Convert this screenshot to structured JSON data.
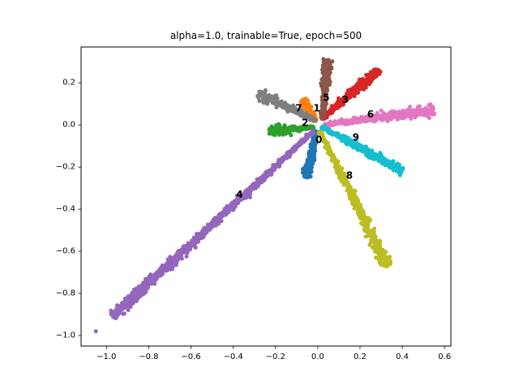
{
  "chart_data": {
    "type": "scatter",
    "title": "alpha=1.0, trainable=True, epoch=500",
    "xlabel": "",
    "ylabel": "",
    "xlim": [
      -1.12,
      0.63
    ],
    "ylim": [
      -1.05,
      0.37
    ],
    "grid": false,
    "x_ticks": [
      -1.0,
      -0.8,
      -0.6,
      -0.4,
      -0.2,
      0.0,
      0.2,
      0.4,
      0.6
    ],
    "x_tick_labels": [
      "−1.0",
      "−0.8",
      "−0.6",
      "−0.4",
      "−0.2",
      "0.0",
      "0.2",
      "0.4",
      "0.6"
    ],
    "y_ticks": [
      0.2,
      0.0,
      -0.2,
      -0.4,
      -0.6,
      -0.8,
      -1.0
    ],
    "y_tick_labels": [
      "0.2",
      "0.0",
      "−0.2",
      "−0.4",
      "−0.6",
      "−0.8",
      "−1.0"
    ],
    "series": [
      {
        "label": "0",
        "color": "#1f77b4",
        "start": [
          -0.01,
          -0.03
        ],
        "end": [
          -0.05,
          -0.25
        ],
        "label_pos": [
          0.005,
          -0.07
        ]
      },
      {
        "label": "1",
        "color": "#ff7f0e",
        "start": [
          -0.01,
          0.02
        ],
        "end": [
          -0.07,
          0.12
        ],
        "label_pos": [
          -0.005,
          0.08
        ]
      },
      {
        "label": "2",
        "color": "#2ca02c",
        "start": [
          -0.02,
          -0.01
        ],
        "end": [
          -0.23,
          -0.03
        ],
        "label_pos": [
          -0.06,
          0.01
        ]
      },
      {
        "label": "3",
        "color": "#d62728",
        "start": [
          0.02,
          0.03
        ],
        "end": [
          0.29,
          0.26
        ],
        "label_pos": [
          0.13,
          0.12
        ]
      },
      {
        "label": "4",
        "color": "#9467bd",
        "start": [
          -0.02,
          -0.03
        ],
        "end": [
          -0.97,
          -0.91
        ],
        "label_pos": [
          -0.37,
          -0.33
        ]
      },
      {
        "label": "5",
        "color": "#8c564b",
        "start": [
          0.02,
          0.03
        ],
        "end": [
          0.05,
          0.31
        ],
        "label_pos": [
          0.04,
          0.13
        ]
      },
      {
        "label": "6",
        "color": "#e377c2",
        "start": [
          0.03,
          0.0
        ],
        "end": [
          0.55,
          0.07
        ],
        "label_pos": [
          0.25,
          0.05
        ]
      },
      {
        "label": "7",
        "color": "#7f7f7f",
        "start": [
          -0.01,
          0.02
        ],
        "end": [
          -0.28,
          0.15
        ],
        "label_pos": [
          -0.09,
          0.08
        ]
      },
      {
        "label": "8",
        "color": "#bcbd22",
        "start": [
          0.01,
          -0.03
        ],
        "end": [
          0.33,
          -0.67
        ],
        "label_pos": [
          0.15,
          -0.24
        ]
      },
      {
        "label": "9",
        "color": "#17becf",
        "start": [
          0.02,
          -0.01
        ],
        "end": [
          0.4,
          -0.22
        ],
        "label_pos": [
          0.18,
          -0.06
        ]
      }
    ],
    "outliers": [
      {
        "series": "4",
        "x": -1.05,
        "y": -0.98
      }
    ]
  }
}
